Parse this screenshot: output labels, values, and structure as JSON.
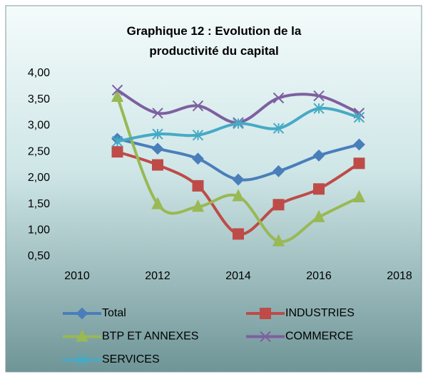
{
  "chart_data": {
    "type": "line",
    "title": "Graphique 12 : Evolution de la productivité du capital",
    "x": [
      2011,
      2012,
      2013,
      2014,
      2015,
      2016,
      2017
    ],
    "series": [
      {
        "name": "Total",
        "color": "#4a7ebb",
        "marker": "diamond",
        "values": [
          2.75,
          2.56,
          2.37,
          1.97,
          2.13,
          2.43,
          2.64
        ]
      },
      {
        "name": "INDUSTRIES",
        "color": "#be4b48",
        "marker": "square",
        "values": [
          2.5,
          2.25,
          1.85,
          0.93,
          1.49,
          1.79,
          2.28
        ]
      },
      {
        "name": "BTP ET ANNEXES",
        "color": "#98b954",
        "marker": "triangle",
        "values": [
          3.55,
          1.5,
          1.45,
          1.65,
          0.79,
          1.25,
          1.63
        ]
      },
      {
        "name": "COMMERCE",
        "color": "#7d60a0",
        "marker": "x",
        "values": [
          3.68,
          3.24,
          3.38,
          3.06,
          3.53,
          3.57,
          3.24
        ]
      },
      {
        "name": "SERVICES",
        "color": "#46aac5",
        "marker": "star",
        "values": [
          2.7,
          2.84,
          2.82,
          3.04,
          2.95,
          3.33,
          3.16
        ]
      }
    ],
    "xlim": [
      2010,
      2018
    ],
    "xticks": [
      2010,
      2012,
      2014,
      2016,
      2018
    ],
    "ylim": [
      0.5,
      4.0
    ],
    "yticks": [
      {
        "value": 0.5,
        "label": "0,50"
      },
      {
        "value": 1.0,
        "label": "1,00"
      },
      {
        "value": 1.5,
        "label": "1,50"
      },
      {
        "value": 2.0,
        "label": "2,00"
      },
      {
        "value": 2.5,
        "label": "2,50"
      },
      {
        "value": 3.0,
        "label": "3,00"
      },
      {
        "value": 3.5,
        "label": "3,50"
      },
      {
        "value": 4.0,
        "label": "4,00"
      }
    ],
    "smooth": true,
    "legend": "bottom"
  }
}
